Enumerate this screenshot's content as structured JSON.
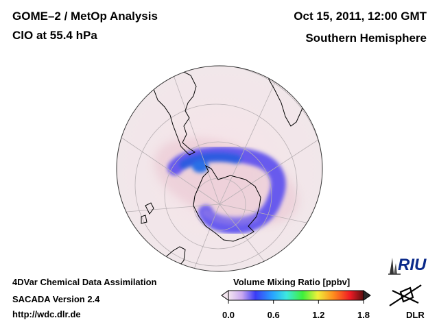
{
  "header": {
    "title": "GOME–2 / MetOp Analysis",
    "subtitle": "ClO at 55.4 hPa",
    "datetime": "Oct 15, 2011, 12:00 GMT",
    "region": "Southern Hemisphere"
  },
  "footer": {
    "line1": "4DVar Chemical Data Assimilation",
    "line2": "SACADA Version 2.4",
    "line3": "http://wdc.dlr.de"
  },
  "colorbar": {
    "title": "Volume Mixing Ratio [ppbv]",
    "ticks": [
      "0.0",
      "0.6",
      "1.2",
      "1.8"
    ],
    "range": [
      0.0,
      1.8
    ]
  },
  "logos": {
    "riu": "RIU",
    "dlr": "DLR"
  },
  "colors": {
    "background_field": "#f3e6ea",
    "vortex_ring": "#3a3cf5",
    "vortex_core": "#2e6fe8",
    "coastline": "#000000",
    "grid": "#b8b0b4"
  },
  "icons": [
    "riu-logo-icon",
    "dlr-logo-icon"
  ]
}
